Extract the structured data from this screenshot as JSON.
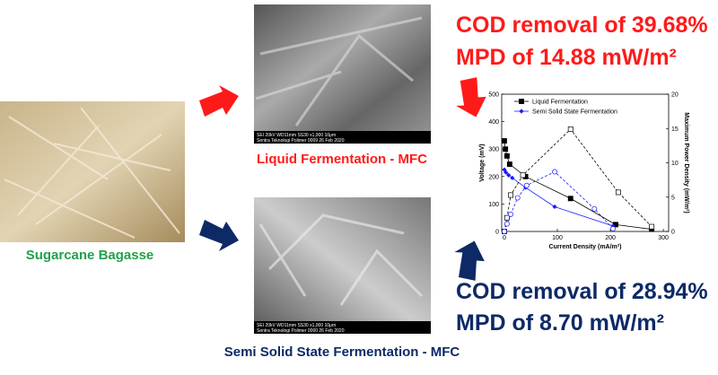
{
  "texts": {
    "cod_liquid": "COD removal of 39.68%",
    "mpd_liquid": "MPD of 14.88 mW/m²",
    "cod_semi": "COD removal of 28.94%",
    "mpd_semi": "MPD of 8.70 mW/m²",
    "bagasse": "Sugarcane Bagasse",
    "liquid_caption": "Liquid Fermentation - MFC",
    "semi_caption": "Semi Solid State Fermentation - MFC"
  },
  "sem_top": {
    "info": "SEI   20kV   WD11mm   SS30   x1,000   10μm",
    "lab": "Sentra Teknologi Polimer   0009   26 Feb 2020"
  },
  "sem_bottom": {
    "info": "SEI   20kV   WD11mm   SS30   x1,000   10μm",
    "lab": "Sentra Teknologi Polimer   0000   26 Feb 2020"
  },
  "chart_data": {
    "type": "line",
    "xlabel": "Current Density (mA/m²)",
    "ylabel": "Voltage (mV)",
    "y2label": "Maximum Power Density (mW/m²)",
    "xlim": [
      -5,
      310
    ],
    "xticks": [
      0,
      100,
      200,
      300
    ],
    "ylim": [
      0,
      500
    ],
    "yticks": [
      0,
      100,
      200,
      300,
      400,
      500
    ],
    "y2lim": [
      0,
      20
    ],
    "y2ticks": [
      0,
      5,
      10,
      15,
      20
    ],
    "legend": "upper left",
    "series": [
      {
        "name": "Liquid Fermentation",
        "color": "#000000",
        "marker": "square",
        "x": [
          0,
          2,
          5,
          10,
          40,
          125,
          210,
          278
        ],
        "values": [
          330,
          300,
          275,
          245,
          200,
          120,
          25,
          8
        ]
      },
      {
        "name": "Semi Solid State Fermentation",
        "color": "#1a1aff",
        "marker": "diamond",
        "x": [
          0,
          3,
          8,
          15,
          40,
          95,
          205
        ],
        "values": [
          225,
          215,
          205,
          195,
          160,
          90,
          20
        ]
      },
      {
        "color": "#000000",
        "marker": "open-square",
        "dashed": true,
        "axis": "y2",
        "x": [
          0,
          5,
          12,
          35,
          125,
          215,
          278
        ],
        "values": [
          0,
          2,
          5.3,
          8.2,
          14.9,
          5.7,
          0.7
        ]
      },
      {
        "color": "#1a1aff",
        "marker": "open-circle",
        "dashed": true,
        "axis": "y2",
        "x": [
          0,
          5,
          12,
          25,
          42,
          95,
          170,
          205
        ],
        "values": [
          0,
          1.1,
          2.5,
          4.9,
          6.7,
          8.7,
          3.3,
          0.4
        ]
      }
    ]
  }
}
